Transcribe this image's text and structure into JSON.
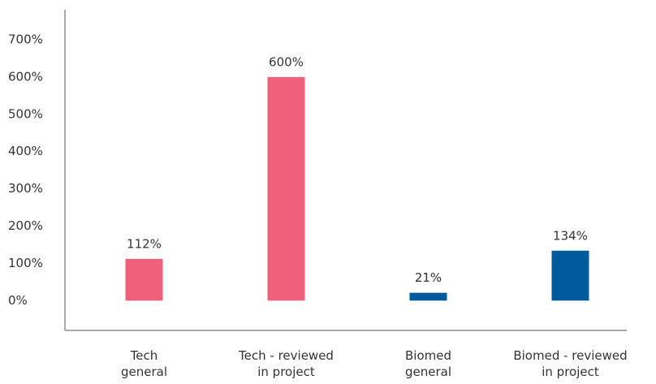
{
  "chart_data": {
    "type": "bar",
    "categories": [
      "Tech\ngeneral",
      "Tech - reviewed\nin project",
      "Biomed\ngeneral",
      "Biomed - reviewed\nin project"
    ],
    "values": [
      112,
      600,
      21,
      134
    ],
    "value_labels": [
      "112%",
      "600%",
      "21%",
      "134%"
    ],
    "colors": [
      "#f0607a",
      "#f0607a",
      "#005a9c",
      "#005a9c"
    ],
    "ylim": [
      -80,
      700
    ],
    "yticks": [
      {
        "value": 0,
        "label": "0%"
      },
      {
        "value": 100,
        "label": "100%"
      },
      {
        "value": 200,
        "label": "200%"
      },
      {
        "value": 300,
        "label": "300%"
      },
      {
        "value": 400,
        "label": "400%"
      },
      {
        "value": 500,
        "label": "500%"
      },
      {
        "value": 600,
        "label": "600%"
      },
      {
        "value": 700,
        "label": "700%"
      }
    ],
    "grid": false
  }
}
